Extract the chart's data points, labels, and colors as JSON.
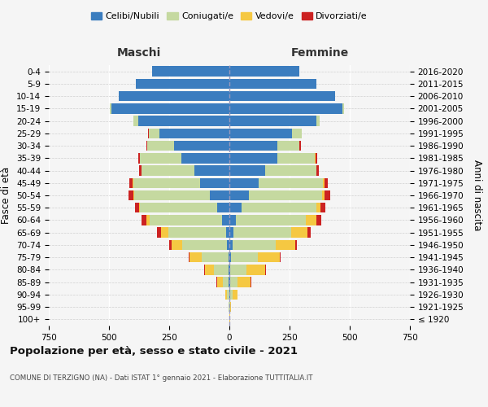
{
  "age_groups": [
    "100+",
    "95-99",
    "90-94",
    "85-89",
    "80-84",
    "75-79",
    "70-74",
    "65-69",
    "60-64",
    "55-59",
    "50-54",
    "45-49",
    "40-44",
    "35-39",
    "30-34",
    "25-29",
    "20-24",
    "15-19",
    "10-14",
    "5-9",
    "0-4"
  ],
  "birth_years": [
    "≤ 1920",
    "1921-1925",
    "1926-1930",
    "1931-1935",
    "1936-1940",
    "1941-1945",
    "1946-1950",
    "1951-1955",
    "1956-1960",
    "1961-1965",
    "1966-1970",
    "1971-1975",
    "1976-1980",
    "1981-1985",
    "1986-1990",
    "1991-1995",
    "1996-2000",
    "2001-2005",
    "2006-2010",
    "2011-2015",
    "2016-2020"
  ],
  "males": {
    "celibe": [
      0,
      0,
      1,
      2,
      3,
      5,
      10,
      15,
      30,
      50,
      80,
      120,
      145,
      200,
      230,
      290,
      380,
      490,
      460,
      390,
      320
    ],
    "coniugato": [
      1,
      2,
      8,
      25,
      60,
      110,
      185,
      240,
      300,
      320,
      315,
      280,
      220,
      170,
      110,
      45,
      18,
      5,
      0,
      0,
      0
    ],
    "vedovo": [
      0,
      1,
      8,
      25,
      40,
      50,
      45,
      30,
      15,
      5,
      3,
      2,
      1,
      1,
      0,
      0,
      0,
      0,
      0,
      0,
      0
    ],
    "divorziato": [
      0,
      0,
      0,
      1,
      2,
      5,
      10,
      15,
      20,
      18,
      22,
      15,
      10,
      8,
      5,
      2,
      1,
      0,
      0,
      0,
      0
    ]
  },
  "females": {
    "nubile": [
      0,
      0,
      2,
      3,
      5,
      8,
      12,
      18,
      28,
      50,
      80,
      120,
      150,
      200,
      200,
      260,
      360,
      470,
      440,
      360,
      290
    ],
    "coniugata": [
      1,
      3,
      12,
      30,
      65,
      110,
      180,
      240,
      290,
      310,
      305,
      270,
      210,
      155,
      90,
      40,
      15,
      5,
      0,
      0,
      0
    ],
    "vedova": [
      1,
      5,
      20,
      55,
      80,
      90,
      80,
      65,
      45,
      20,
      10,
      5,
      3,
      2,
      1,
      0,
      0,
      0,
      0,
      0,
      0
    ],
    "divorziata": [
      0,
      0,
      1,
      2,
      3,
      5,
      8,
      15,
      20,
      20,
      25,
      15,
      10,
      8,
      5,
      2,
      1,
      0,
      0,
      0,
      0
    ]
  },
  "colors": {
    "celibe_nubile": "#3b7dbf",
    "coniugato_a": "#c5d9a0",
    "vedovo_a": "#f5c842",
    "divorziato_a": "#cc2222"
  },
  "xlim": 750,
  "title": "Popolazione per età, sesso e stato civile - 2021",
  "subtitle": "COMUNE DI TERZIGNO (NA) - Dati ISTAT 1° gennaio 2021 - Elaborazione TUTTITALIA.IT",
  "ylabel_left": "Fasce di età",
  "ylabel_right": "Anni di nascita",
  "xlabel_maschi": "Maschi",
  "xlabel_femmine": "Femmine",
  "legend_labels": [
    "Celibi/Nubili",
    "Coniugati/e",
    "Vedovi/e",
    "Divorziati/e"
  ],
  "background_color": "#f5f5f5",
  "xticks": [
    -750,
    -500,
    -250,
    0,
    250,
    500,
    750
  ]
}
